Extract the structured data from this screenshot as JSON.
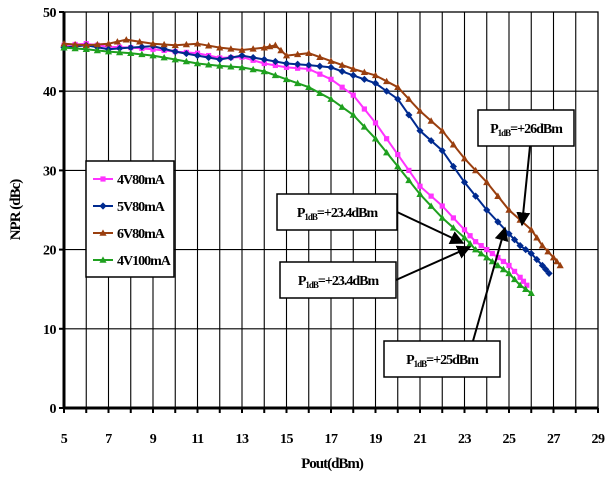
{
  "chart_data": {
    "type": "line",
    "title": "",
    "xlabel": "Pout(dBm)",
    "ylabel": "NPR (dBc)",
    "xlim": [
      5,
      29
    ],
    "ylim": [
      0,
      50
    ],
    "x_ticks": [
      "5",
      "7",
      "9",
      "11",
      "13",
      "15",
      "17",
      "19",
      "21",
      "23",
      "25",
      "27",
      "29"
    ],
    "y_ticks": [
      "0",
      "10",
      "20",
      "30",
      "40",
      "50"
    ],
    "grid": true,
    "legend_position": "left",
    "series": [
      {
        "name": "4V80mA",
        "color": "#ff33ff",
        "marker": "square",
        "x": [
          5.0,
          6.0,
          7.0,
          8.0,
          9.0,
          10.0,
          11.0,
          12.0,
          13.0,
          14.0,
          15.0,
          16.0,
          17.0,
          18.0,
          19.0,
          20.0,
          21.0,
          22.0,
          23.0,
          23.5,
          24.0,
          24.5,
          25.0,
          25.5,
          25.8
        ],
        "y": [
          45.8,
          46.0,
          45.6,
          45.5,
          45.3,
          45.0,
          44.8,
          44.2,
          44.3,
          43.5,
          43.0,
          42.8,
          41.5,
          39.5,
          36.0,
          32.0,
          28.0,
          25.5,
          22.5,
          21.0,
          20.0,
          19.0,
          18.0,
          16.5,
          15.5
        ]
      },
      {
        "name": "5V80mA",
        "color": "#002a8f",
        "marker": "diamond",
        "x": [
          5.0,
          6.0,
          7.0,
          8.0,
          9.0,
          10.0,
          11.0,
          12.0,
          13.0,
          14.0,
          15.0,
          16.0,
          17.0,
          18.0,
          19.0,
          20.0,
          21.0,
          22.0,
          23.0,
          24.0,
          25.0,
          25.5,
          26.0,
          26.5,
          26.8
        ],
        "y": [
          45.5,
          45.8,
          45.3,
          45.5,
          45.7,
          45.0,
          44.5,
          44.0,
          44.5,
          44.0,
          43.5,
          43.3,
          43.0,
          42.0,
          41.0,
          39.0,
          35.0,
          32.5,
          28.5,
          25.0,
          22.0,
          20.5,
          19.5,
          18.0,
          17.0
        ]
      },
      {
        "name": "6V80mA",
        "color": "#9a3f0f",
        "marker": "triangle",
        "x": [
          5.0,
          6.0,
          7.0,
          7.8,
          9.0,
          10.0,
          11.0,
          12.0,
          13.0,
          14.0,
          14.5,
          15.0,
          16.0,
          17.0,
          18.0,
          19.0,
          20.0,
          21.0,
          22.0,
          23.0,
          24.0,
          25.0,
          26.0,
          26.5,
          27.0,
          27.3
        ],
        "y": [
          46.0,
          45.8,
          46.0,
          46.5,
          46.0,
          45.8,
          46.0,
          45.5,
          45.2,
          45.5,
          45.8,
          44.5,
          44.8,
          43.8,
          42.8,
          42.0,
          40.5,
          37.5,
          35.0,
          31.5,
          28.5,
          25.0,
          22.5,
          20.5,
          19.0,
          18.0
        ]
      },
      {
        "name": "4V100mA",
        "color": "#1fa01f",
        "marker": "triangle",
        "x": [
          5.0,
          6.0,
          7.0,
          8.0,
          9.0,
          10.0,
          11.0,
          12.0,
          13.0,
          14.0,
          15.0,
          16.0,
          17.0,
          18.0,
          19.0,
          20.0,
          21.0,
          22.0,
          23.0,
          23.5,
          24.0,
          24.5,
          25.0,
          25.5,
          26.0
        ],
        "y": [
          45.5,
          45.3,
          45.0,
          44.8,
          44.5,
          44.0,
          43.5,
          43.2,
          43.0,
          42.5,
          41.5,
          40.5,
          39.0,
          37.0,
          34.0,
          30.5,
          27.0,
          24.0,
          21.5,
          20.0,
          19.0,
          18.0,
          17.0,
          15.5,
          14.5
        ]
      }
    ],
    "annotations": [
      {
        "sub": "1dB",
        "suffix": "=+26dBm"
      },
      {
        "sub": "1dB",
        "suffix": "=+23.4dBm"
      },
      {
        "sub": "1dB",
        "suffix": "=+23.4dBm"
      },
      {
        "sub": "1dB",
        "suffix": "=+25dBm"
      }
    ]
  }
}
